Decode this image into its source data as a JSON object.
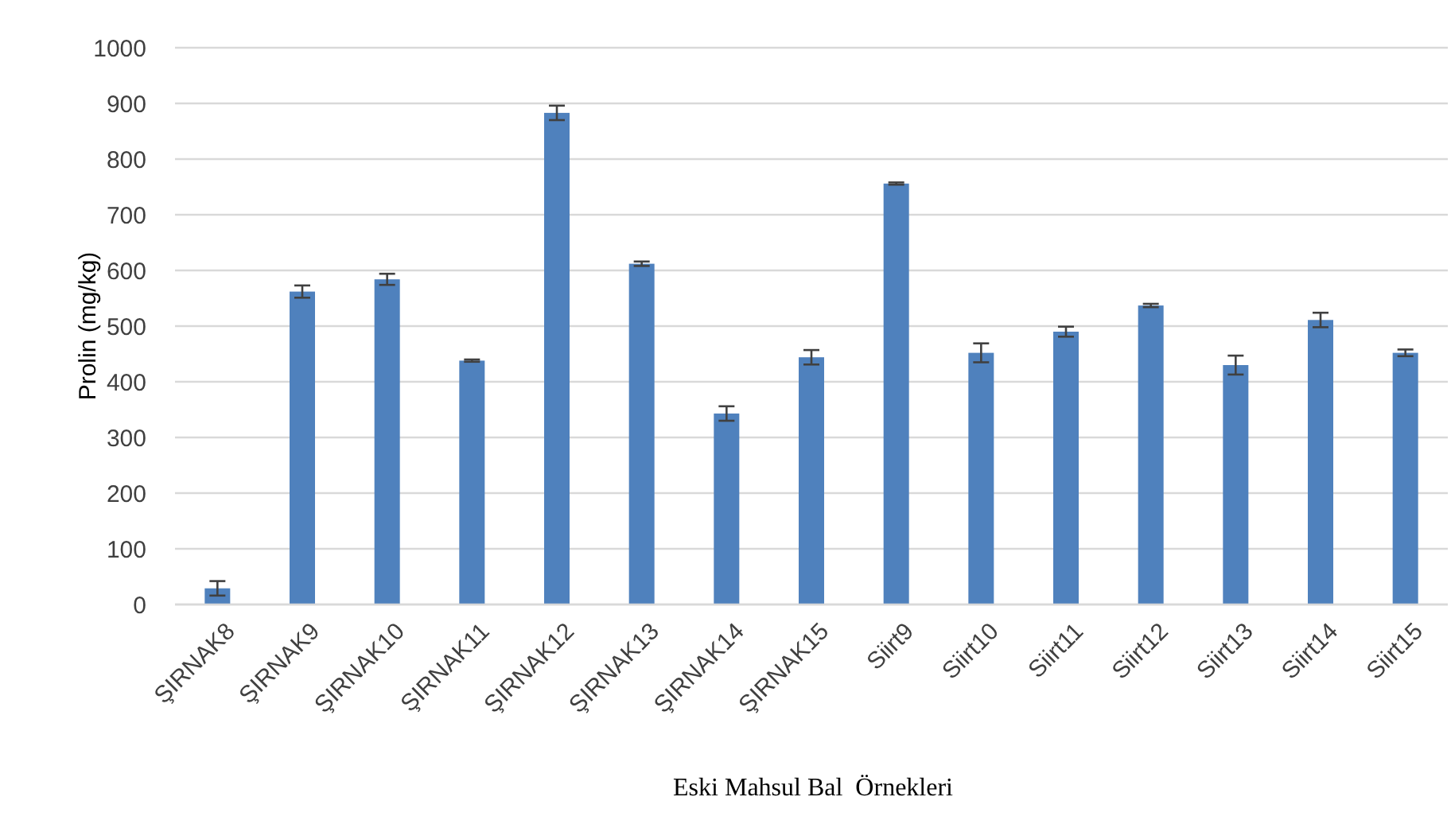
{
  "chart_data": {
    "type": "bar",
    "xlabel": "Eski Mahsul Bal  Örnekleri",
    "ylabel": "Prolin (mg/kg)",
    "categories": [
      "ŞIRNAK8",
      "ŞIRNAK9",
      "ŞIRNAK10",
      "ŞIRNAK11",
      "ŞIRNAK12",
      "ŞIRNAK13",
      "ŞIRNAK14",
      "ŞIRNAK15",
      "Siirt9",
      "Siirt10",
      "Siirt11",
      "Siirt12",
      "Siirt13",
      "Siirt14",
      "Siirt15"
    ],
    "values": [
      29,
      562,
      584,
      438,
      883,
      612,
      343,
      444,
      756,
      452,
      490,
      537,
      430,
      511,
      452
    ],
    "errors": [
      13,
      11,
      10,
      2,
      13,
      4,
      13,
      13,
      2,
      17,
      9,
      3,
      17,
      13,
      6
    ],
    "color": "#4f81bd",
    "ylim": [
      0,
      1000
    ],
    "yticks": [
      0,
      100,
      200,
      300,
      400,
      500,
      600,
      700,
      800,
      900,
      1000
    ],
    "grid": "y"
  }
}
